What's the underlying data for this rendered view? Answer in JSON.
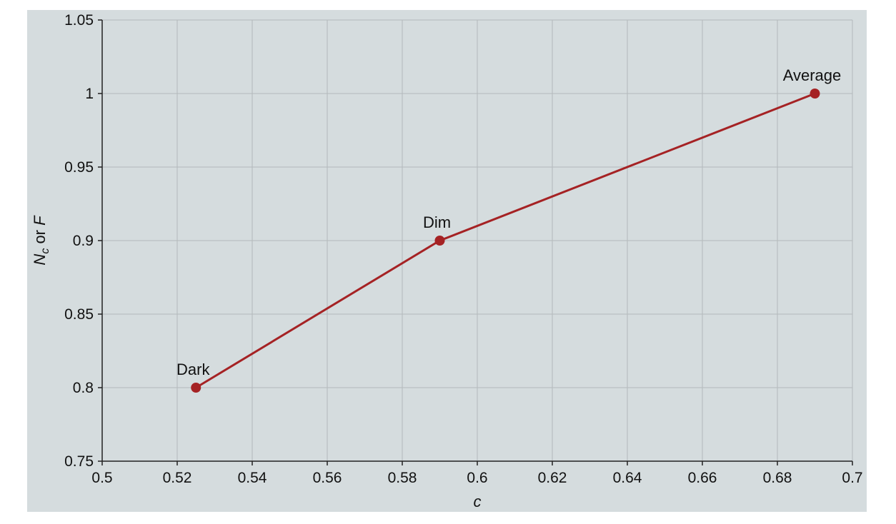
{
  "chart_data": {
    "type": "line",
    "title": "",
    "xlabel": "c",
    "ylabel": {
      "main": "N",
      "sub": "c",
      "rest": " or ",
      "italic_end": "F"
    },
    "xlim": [
      0.5,
      0.7
    ],
    "ylim": [
      0.75,
      1.05
    ],
    "x_ticks": [
      "0.5",
      "0.52",
      "0.54",
      "0.56",
      "0.58",
      "0.6",
      "0.62",
      "0.64",
      "0.66",
      "0.68",
      "0.7"
    ],
    "y_ticks": [
      "0.75",
      "0.8",
      "0.85",
      "0.9",
      "0.95",
      "1",
      "1.05"
    ],
    "grid": true,
    "series": [
      {
        "points": [
          {
            "x": 0.525,
            "y": 0.8,
            "label": "Dark"
          },
          {
            "x": 0.59,
            "y": 0.9,
            "label": "Dim"
          },
          {
            "x": 0.69,
            "y": 1.0,
            "label": "Average"
          }
        ]
      }
    ],
    "colors": {
      "background": "#d5dcde",
      "grid": "#b3b9bc",
      "axis": "#222222",
      "series": "#a52224"
    }
  }
}
